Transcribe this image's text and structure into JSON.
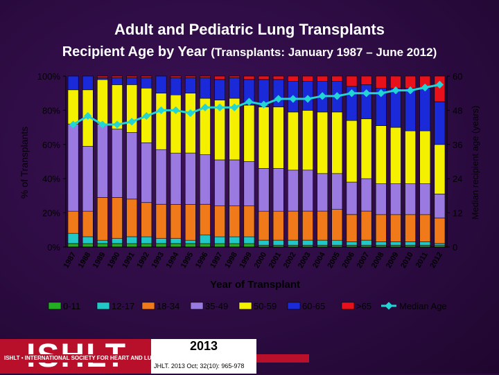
{
  "slide": {
    "title": "Adult and Pediatric Lung Transplants",
    "subtitle_main": "Recipient Age by Year",
    "subtitle_paren": "(Transplants: January 1987 – June 2012)",
    "logo_text": "ISHLT",
    "logo_subtext": "ISHLT • INTERNATIONAL SOCIETY FOR HEART AND LUNG TRANSPLANTATION",
    "year": "2013",
    "citation": "JHLT. 2013 Oct; 32(10): 965-978"
  },
  "colors": {
    "background": "#2b0b40",
    "0-11": "#22b022",
    "12-17": "#22c8c8",
    "18-34": "#f07a1a",
    "35-49": "#9a7ae0",
    "50-59": "#f5f000",
    "60-65": "#1a2ad8",
    ">65": "#e8101a",
    "median": "#22d4d4"
  },
  "chart_data": {
    "type": "bar",
    "stacked": true,
    "categories": [
      "1987",
      "1988",
      "1989",
      "1990",
      "1991",
      "1992",
      "1993",
      "1994",
      "1995",
      "1996",
      "1997",
      "1998",
      "1999",
      "2000",
      "2001",
      "2002",
      "2003",
      "2004",
      "2005",
      "2006",
      "2007",
      "2008",
      "2009",
      "2010",
      "2011",
      "2012"
    ],
    "xlabel": "Year of Transplant",
    "ylabel": "% of Transplants",
    "y2label": "Median recipient age (years)",
    "ylim": [
      0,
      100
    ],
    "y2lim": [
      0,
      60
    ],
    "yticks": [
      "0%",
      "20%",
      "40%",
      "60%",
      "80%",
      "100%"
    ],
    "y2ticks": [
      "0",
      "12",
      "24",
      "36",
      "48",
      "60"
    ],
    "grid": false,
    "legend_position": "bottom",
    "series": [
      {
        "name": "0-11",
        "values": [
          2,
          2,
          2,
          2,
          2,
          2,
          2,
          2,
          2,
          2,
          2,
          2,
          2,
          1,
          1,
          1,
          1,
          1,
          1,
          1,
          1,
          1,
          1,
          1,
          1,
          1
        ]
      },
      {
        "name": "12-17",
        "values": [
          6,
          4,
          2,
          3,
          4,
          4,
          3,
          3,
          2,
          5,
          4,
          4,
          4,
          3,
          3,
          3,
          3,
          3,
          3,
          2,
          3,
          2,
          2,
          2,
          2,
          1
        ]
      },
      {
        "name": "18-34",
        "values": [
          13,
          15,
          25,
          24,
          22,
          20,
          20,
          20,
          21,
          18,
          18,
          18,
          18,
          17,
          17,
          17,
          17,
          17,
          18,
          16,
          17,
          16,
          16,
          16,
          16,
          15
        ]
      },
      {
        "name": "35-49",
        "values": [
          51,
          38,
          43,
          40,
          39,
          35,
          32,
          30,
          30,
          29,
          27,
          27,
          26,
          25,
          25,
          24,
          24,
          22,
          21,
          19,
          19,
          18,
          18,
          18,
          18,
          14
        ]
      },
      {
        "name": "50-59",
        "values": [
          20,
          33,
          26,
          26,
          28,
          32,
          33,
          34,
          35,
          33,
          35,
          36,
          33,
          36,
          36,
          34,
          35,
          36,
          36,
          36,
          35,
          34,
          33,
          31,
          31,
          29
        ]
      },
      {
        "name": "60-65",
        "values": [
          8,
          8,
          1,
          4,
          4,
          6,
          10,
          10,
          9,
          12,
          12,
          12,
          15,
          16,
          16,
          18,
          17,
          18,
          18,
          20,
          20,
          22,
          23,
          25,
          25,
          25
        ]
      },
      {
        "name": ">65",
        "values": [
          0,
          0,
          1,
          1,
          1,
          1,
          0,
          1,
          1,
          1,
          2,
          1,
          2,
          2,
          2,
          3,
          3,
          3,
          3,
          6,
          5,
          7,
          7,
          7,
          7,
          15
        ]
      }
    ],
    "line": {
      "name": "Median Age",
      "values": [
        43,
        46,
        43,
        43,
        44,
        46,
        48,
        48,
        47,
        49,
        49,
        49,
        51,
        50,
        52,
        52,
        52,
        53,
        53,
        54,
        54,
        54,
        55,
        55,
        56,
        57
      ]
    }
  }
}
